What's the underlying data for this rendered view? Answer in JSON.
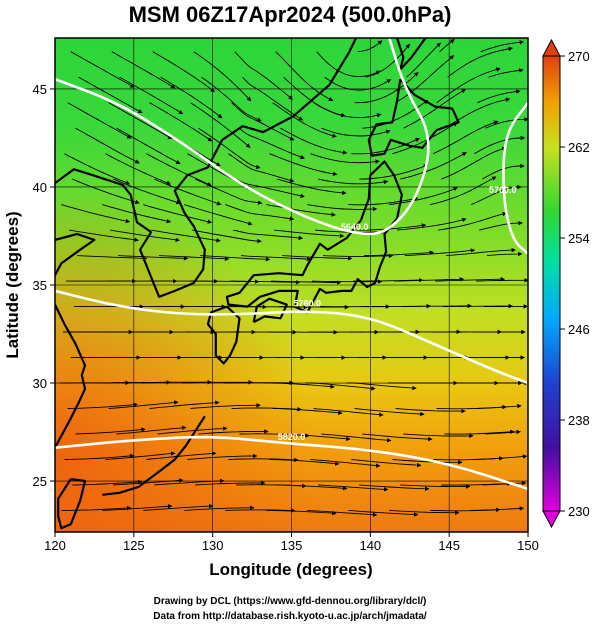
{
  "figure": {
    "title": "MSM 06Z17Apr2024 (500.0hPa)",
    "credit_line1": "Drawing by DCL (https://www.gfd-dennou.org/library/dcl/)",
    "credit_line2": "Data from http://database.rish.kyoto-u.ac.jp/arch/jmadata/"
  },
  "chart_data": {
    "type": "heatmap",
    "title": "MSM 06Z17Apr2024 (500.0hPa)",
    "xlabel": "Longitude (degrees)",
    "ylabel": "Latitude  (degrees)",
    "xlim": [
      120,
      150
    ],
    "ylim": [
      22.4,
      47.6
    ],
    "x_ticks": [
      "120",
      "125",
      "130",
      "135",
      "140",
      "145",
      "150"
    ],
    "y_ticks": [
      "25",
      "30",
      "35",
      "40",
      "45"
    ],
    "colorbar": {
      "range": [
        230,
        270
      ],
      "tick_labels": [
        "270",
        "262",
        "254",
        "246",
        "238",
        "230"
      ],
      "colors_low_to_high": [
        "#e000e0",
        "#2020b0",
        "#00a0ff",
        "#00e0a0",
        "#30d830",
        "#c0e020",
        "#f0a000",
        "#e04010"
      ]
    },
    "contours": [
      {
        "label": "5640.0",
        "points": [
          [
            120,
            45.5
          ],
          [
            124,
            44.3
          ],
          [
            128,
            42.3
          ],
          [
            132,
            40.0
          ],
          [
            136,
            38.4
          ],
          [
            139,
            37.6
          ],
          [
            141,
            37.6
          ],
          [
            143,
            39.4
          ],
          [
            144,
            42.5
          ],
          [
            142.2,
            45.0
          ],
          [
            141.2,
            47.6
          ]
        ]
      },
      {
        "label": "5700.0",
        "points": [
          [
            150,
            44.3
          ],
          [
            148.5,
            42.7
          ],
          [
            148.4,
            39.5
          ],
          [
            149,
            37.3
          ],
          [
            150,
            36.6
          ]
        ]
      },
      {
        "label": "5760.0",
        "points": [
          [
            120,
            34.7
          ],
          [
            124,
            33.9
          ],
          [
            128,
            33.5
          ],
          [
            132,
            33.5
          ],
          [
            136,
            33.7
          ],
          [
            140,
            33.4
          ],
          [
            144,
            32.0
          ],
          [
            148,
            30.6
          ],
          [
            150,
            30.0
          ]
        ]
      },
      {
        "label": "5820.0",
        "points": [
          [
            120,
            26.7
          ],
          [
            125,
            27.1
          ],
          [
            130,
            27.3
          ],
          [
            135,
            26.9
          ],
          [
            140,
            26.6
          ],
          [
            145,
            25.9
          ],
          [
            150,
            24.6
          ]
        ]
      }
    ],
    "coastlines": [
      {
        "name": "korea",
        "points": [
          [
            126.1,
            37.7
          ],
          [
            125.4,
            36.8
          ],
          [
            126.3,
            35.0
          ],
          [
            126.6,
            34.4
          ],
          [
            127.6,
            34.7
          ],
          [
            128.8,
            35.1
          ],
          [
            129.4,
            35.8
          ],
          [
            129.5,
            36.8
          ],
          [
            128.8,
            38.0
          ],
          [
            128.2,
            38.7
          ],
          [
            127.6,
            39.8
          ],
          [
            128.4,
            40.6
          ],
          [
            129.7,
            41.0
          ],
          [
            130.6,
            42.4
          ]
        ]
      },
      {
        "name": "korea-west",
        "points": [
          [
            126.1,
            37.7
          ],
          [
            125.2,
            38.2
          ],
          [
            124.8,
            39.6
          ],
          [
            124.3,
            40.1
          ],
          [
            122.4,
            40.6
          ]
        ]
      },
      {
        "name": "china-north",
        "points": [
          [
            122.4,
            40.6
          ],
          [
            121.2,
            40.9
          ],
          [
            120,
            40.2
          ]
        ]
      },
      {
        "name": "shandong",
        "points": [
          [
            120,
            37.3
          ],
          [
            121.4,
            37.6
          ],
          [
            122.5,
            37.3
          ],
          [
            121.6,
            36.8
          ],
          [
            120.4,
            36.1
          ],
          [
            120,
            35.5
          ]
        ]
      },
      {
        "name": "china-east",
        "points": [
          [
            120,
            34.0
          ],
          [
            120.6,
            33.0
          ],
          [
            121.3,
            32.0
          ],
          [
            121.9,
            30.9
          ],
          [
            121.7,
            30.4
          ],
          [
            121.9,
            29.7
          ],
          [
            121.5,
            29.0
          ],
          [
            121.0,
            28.2
          ],
          [
            120.4,
            27.3
          ],
          [
            120,
            26.7
          ]
        ]
      },
      {
        "name": "taiwan",
        "points": [
          [
            121.0,
            25.1
          ],
          [
            121.9,
            25.0
          ],
          [
            121.6,
            24.0
          ],
          [
            121.0,
            22.8
          ],
          [
            120.4,
            22.6
          ],
          [
            120.2,
            23.2
          ],
          [
            120.2,
            24.1
          ],
          [
            121.0,
            25.1
          ]
        ]
      },
      {
        "name": "russia",
        "points": [
          [
            130.6,
            42.4
          ],
          [
            131.9,
            43.1
          ],
          [
            133.2,
            42.8
          ],
          [
            135.1,
            43.6
          ],
          [
            137.4,
            45.2
          ],
          [
            138.6,
            46.8
          ],
          [
            139.1,
            47.6
          ]
        ]
      },
      {
        "name": "sakhalin",
        "points": [
          [
            141.7,
            47.6
          ],
          [
            142.1,
            46.6
          ],
          [
            141.9,
            46.0
          ],
          [
            142.6,
            46.6
          ],
          [
            143.5,
            47.6
          ]
        ]
      },
      {
        "name": "hokkaido",
        "points": [
          [
            141.9,
            45.5
          ],
          [
            141.7,
            44.4
          ],
          [
            141.4,
            43.3
          ],
          [
            140.4,
            43.2
          ],
          [
            139.9,
            42.4
          ],
          [
            140.1,
            41.6
          ],
          [
            140.9,
            41.7
          ],
          [
            141.3,
            42.4
          ],
          [
            142.5,
            42.1
          ],
          [
            143.3,
            42.0
          ],
          [
            144.2,
            42.9
          ],
          [
            145.6,
            43.3
          ],
          [
            145.2,
            44.0
          ],
          [
            144.1,
            44.1
          ],
          [
            142.8,
            44.7
          ],
          [
            141.9,
            45.5
          ]
        ]
      },
      {
        "name": "honshu-north",
        "points": [
          [
            140.0,
            40.6
          ],
          [
            140.9,
            41.3
          ],
          [
            141.5,
            40.6
          ],
          [
            142.0,
            39.6
          ],
          [
            141.7,
            38.4
          ],
          [
            140.9,
            37.6
          ],
          [
            141.0,
            36.7
          ],
          [
            140.6,
            35.9
          ],
          [
            140.3,
            35.1
          ],
          [
            139.8,
            34.9
          ],
          [
            139.2,
            35.3
          ],
          [
            138.8,
            34.7
          ],
          [
            138.2,
            34.7
          ],
          [
            137.2,
            34.6
          ],
          [
            136.8,
            34.8
          ],
          [
            136.0,
            33.6
          ],
          [
            135.2,
            33.9
          ],
          [
            135.4,
            34.7
          ],
          [
            134.2,
            34.7
          ],
          [
            133.0,
            34.4
          ],
          [
            132.2,
            33.9
          ],
          [
            131.0,
            34.0
          ],
          [
            130.9,
            34.4
          ],
          [
            131.7,
            34.6
          ],
          [
            132.6,
            35.5
          ],
          [
            134.2,
            35.6
          ],
          [
            135.7,
            35.5
          ],
          [
            136.0,
            36.0
          ],
          [
            136.8,
            37.1
          ],
          [
            137.3,
            36.8
          ],
          [
            138.5,
            37.4
          ],
          [
            139.4,
            38.3
          ],
          [
            139.9,
            39.4
          ],
          [
            140.0,
            40.6
          ]
        ]
      },
      {
        "name": "shikoku",
        "points": [
          [
            132.6,
            33.1
          ],
          [
            133.3,
            33.4
          ],
          [
            134.3,
            33.3
          ],
          [
            134.7,
            34.0
          ],
          [
            133.6,
            34.3
          ],
          [
            132.8,
            33.9
          ],
          [
            132.6,
            33.1
          ]
        ]
      },
      {
        "name": "kyushu",
        "points": [
          [
            130.9,
            33.9
          ],
          [
            131.7,
            33.3
          ],
          [
            131.5,
            32.1
          ],
          [
            131.1,
            31.4
          ],
          [
            130.7,
            31.0
          ],
          [
            130.2,
            31.4
          ],
          [
            130.2,
            32.5
          ],
          [
            129.7,
            33.0
          ],
          [
            129.9,
            33.6
          ],
          [
            130.9,
            33.9
          ]
        ]
      },
      {
        "name": "ryukyu",
        "points": [
          [
            129.5,
            28.3
          ],
          [
            128.3,
            26.8
          ],
          [
            127.6,
            26.1
          ],
          [
            126.8,
            25.6
          ],
          [
            125.3,
            24.7
          ],
          [
            124.1,
            24.4
          ],
          [
            123.0,
            24.3
          ]
        ]
      }
    ]
  }
}
